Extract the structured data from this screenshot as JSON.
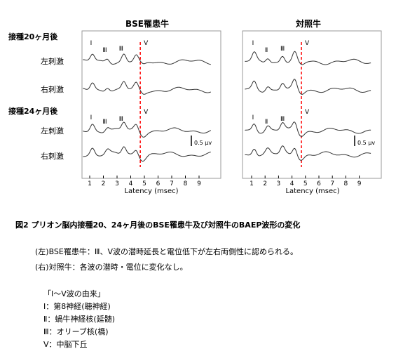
{
  "chart_data": {
    "type": "line",
    "panels": [
      {
        "title": "BSE罹患牛",
        "markers": [
          "Ⅰ",
          "Ⅲ",
          "Ⅲ",
          "Ⅴ"
        ],
        "markers_24": [
          "Ⅰ",
          "Ⅲ",
          "Ⅲ",
          "Ⅴ"
        ]
      },
      {
        "title": "対照牛",
        "markers": [
          "Ⅰ",
          "Ⅱ",
          "Ⅲ",
          "Ⅴ"
        ],
        "markers_24": [
          "Ⅰ",
          "Ⅱ",
          "Ⅲ",
          "Ⅴ"
        ]
      }
    ],
    "groups": [
      "接種20ヶ月後",
      "接種24ヶ月後"
    ],
    "series": [
      "左刺激",
      "右刺激"
    ],
    "xlabel": "Latency (msec)",
    "xticks": [
      1,
      2,
      3,
      4,
      5,
      6,
      7,
      8,
      9
    ],
    "xlim": [
      0,
      10
    ],
    "dashed_line_x": 4.7,
    "scale_bar": "0.5 μv",
    "dashed_color": "#ff0000"
  },
  "caption": "図2  プリオン脳内接種20、24ヶ月後のBSE罹患牛及び対照牛のBAEP波形の変化",
  "notes": [
    "(左)BSE罹患牛：Ⅲ、Ⅴ波の潜時延長と電位低下が左右両側性に認められる。",
    "(右)対照牛：各波の潜時・電位に変化なし。"
  ],
  "origin": {
    "title": "「Ⅰ～Ⅴ波の由来」",
    "items": [
      "Ⅰ：第8神経(聴神経)",
      "Ⅱ：蝸牛神経核(延髄)",
      "Ⅲ：オリーブ核(橋)",
      "Ⅴ：中脳下丘"
    ]
  }
}
